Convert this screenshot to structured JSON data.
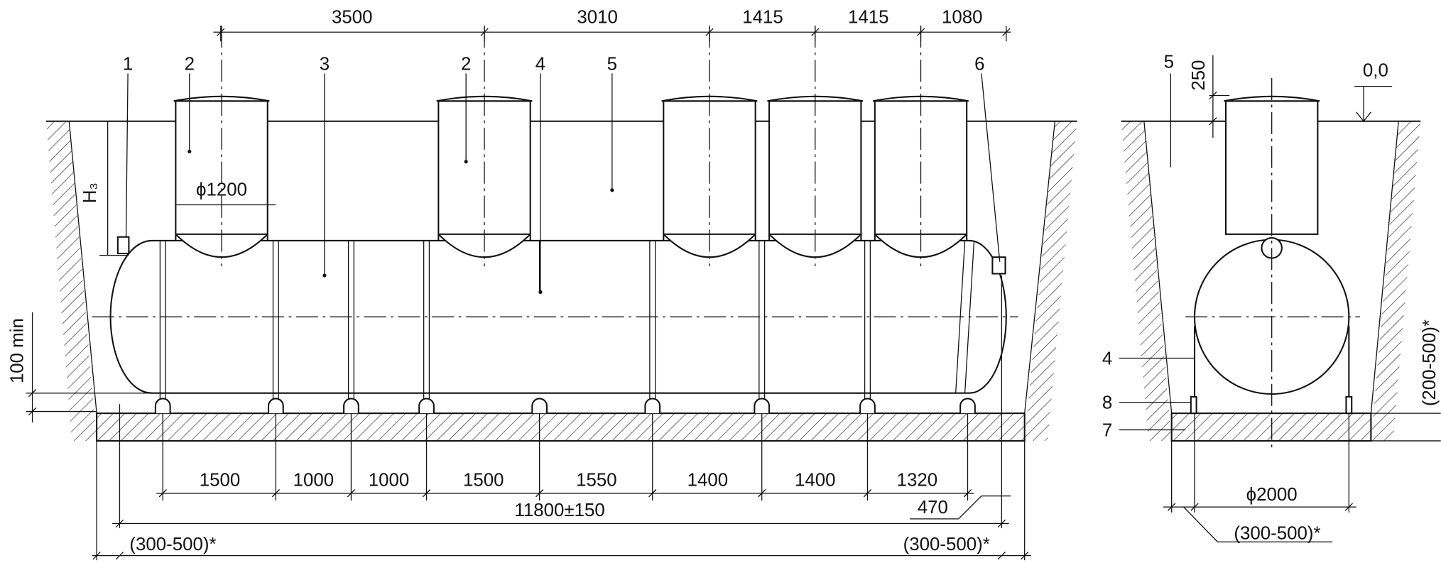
{
  "front_view": {
    "top_dimensions": [
      "3500",
      "3010",
      "1415",
      "1415",
      "1080"
    ],
    "callouts": [
      "1",
      "2",
      "3",
      "2",
      "4",
      "5",
      "6"
    ],
    "neck_diameter": "ϕ1200",
    "depth_label": "H₃",
    "min_clearance": "100 min",
    "bottom_dimensions": [
      "1500",
      "1000",
      "1000",
      "1500",
      "1550",
      "1400",
      "1400",
      "1320"
    ],
    "overall_length": "11800±150",
    "end_offset": "470",
    "side_clearance_left": "(300-500)*",
    "side_clearance_right": "(300-500)*"
  },
  "side_view": {
    "callouts": [
      "5",
      "4",
      "8",
      "7"
    ],
    "cover_depth": "250",
    "ground_level": "0,0",
    "tank_diameter": "ϕ2000",
    "side_clearance": "(300-500)*",
    "bottom_clearance": "(200-500)*"
  }
}
